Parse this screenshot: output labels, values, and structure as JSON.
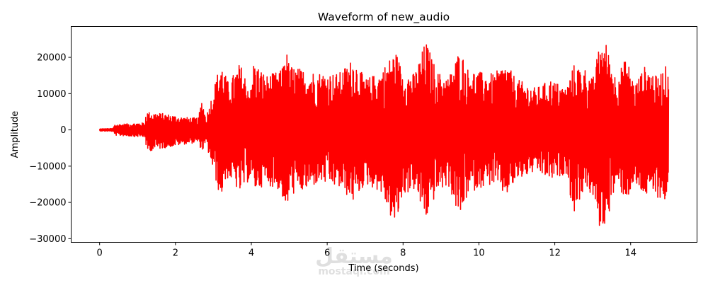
{
  "chart_data": {
    "type": "line",
    "title": "Waveform of new_audio",
    "xlabel": "Time (seconds)",
    "ylabel": "Amplitude",
    "xlim": [
      -0.75,
      15.75
    ],
    "ylim": [
      -31000,
      28500
    ],
    "x_ticks": [
      0,
      2,
      4,
      6,
      8,
      10,
      12,
      14
    ],
    "y_ticks": [
      -30000,
      -20000,
      -10000,
      0,
      10000,
      20000
    ],
    "y_tick_labels": [
      "−30000",
      "−20000",
      "−10000",
      "0",
      "10000",
      "20000"
    ],
    "grid": false,
    "series": [
      {
        "color": "#ff0000",
        "envelope_time": [
          0,
          0.35,
          0.4,
          1.2,
          1.22,
          1.7,
          2.2,
          2.6,
          2.7,
          2.8,
          2.9,
          3.2,
          3.25,
          3.4,
          3.7,
          4.0,
          4.05,
          4.4,
          4.8,
          4.9,
          5.0,
          5.4,
          5.8,
          6.3,
          6.7,
          7.0,
          7.4,
          7.8,
          8.0,
          8.3,
          8.6,
          8.9,
          9.2,
          9.5,
          9.7,
          10.0,
          10.4,
          10.7,
          11.0,
          11.5,
          11.9,
          12.3,
          12.5,
          12.8,
          13.0,
          13.2,
          13.35,
          13.6,
          13.9,
          14.1,
          14.4,
          14.7,
          14.9,
          15.0
        ],
        "envelope_max": [
          300,
          400,
          1500,
          2000,
          5000,
          4500,
          3500,
          3300,
          8800,
          3500,
          7000,
          19500,
          17000,
          13000,
          18500,
          11000,
          19000,
          15000,
          16500,
          23500,
          18000,
          16500,
          16000,
          15500,
          20000,
          14000,
          16000,
          22000,
          16000,
          15500,
          24700,
          16000,
          14500,
          22500,
          17000,
          16000,
          15500,
          18500,
          14000,
          11500,
          14000,
          11500,
          18000,
          17000,
          14000,
          24500,
          24000,
          15000,
          20000,
          12500,
          18000,
          14500,
          17500,
          17500
        ],
        "envelope_min": [
          -300,
          -400,
          -1500,
          -2000,
          -6000,
          -5000,
          -4000,
          -3500,
          -6000,
          -4000,
          -7500,
          -19500,
          -16000,
          -13000,
          -17500,
          -13000,
          -17000,
          -15000,
          -17000,
          -25500,
          -18000,
          -17000,
          -14500,
          -16000,
          -20000,
          -15000,
          -17000,
          -27500,
          -18000,
          -16500,
          -25000,
          -17000,
          -15500,
          -25000,
          -18000,
          -16000,
          -15000,
          -18500,
          -14000,
          -11500,
          -14000,
          -12000,
          -23500,
          -15500,
          -19000,
          -28000,
          -26000,
          -16000,
          -19000,
          -15500,
          -18500,
          -18500,
          -20000,
          -16000
        ],
        "samples_per_second": 130
      }
    ]
  },
  "watermark": {
    "glyphs": "مستقل",
    "label": "mostaql.com"
  }
}
